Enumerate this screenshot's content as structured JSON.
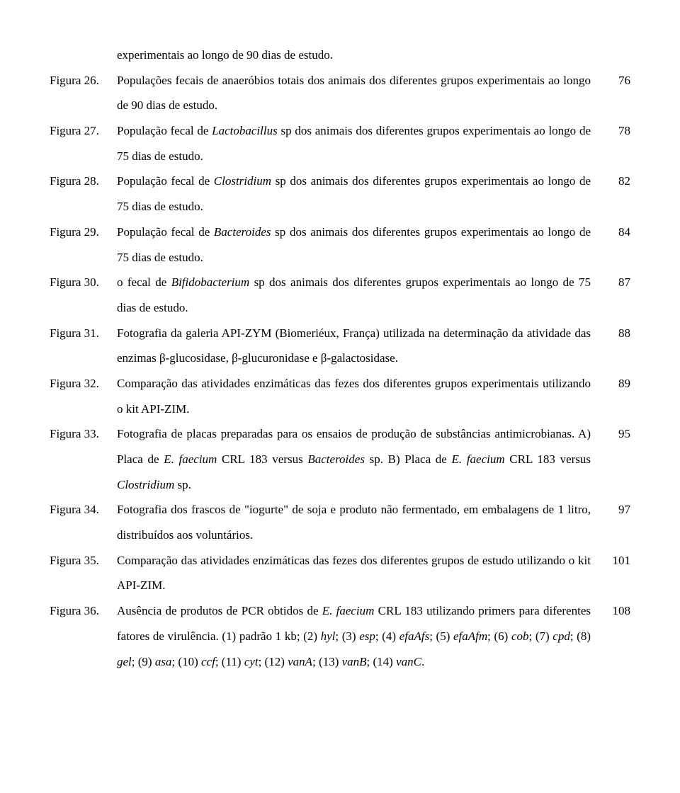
{
  "orphan_line": "experimentais ao longo de 90 dias de estudo.",
  "entries": [
    {
      "label": "Figura 26.",
      "page": "76",
      "desc": "Populações fecais de anaeróbios totais dos animais dos diferentes grupos experimentais ao longo de 90 dias de estudo."
    },
    {
      "label": "Figura 27.",
      "page": "78",
      "desc": "População fecal de <span class=\"italic\">Lactobacillus</span> sp dos animais dos diferentes grupos experimentais ao longo de 75 dias de estudo."
    },
    {
      "label": "Figura 28.",
      "page": "82",
      "desc": "População fecal de <span class=\"italic\">Clostridium</span> sp dos animais dos diferentes grupos experimentais ao longo de 75 dias de estudo."
    },
    {
      "label": "Figura 29.",
      "page": "84",
      "desc": "População fecal de <span class=\"italic\">Bacteroides</span> sp dos animais dos diferentes grupos experimentais ao longo de 75 dias de estudo."
    },
    {
      "label": "Figura 30.",
      "page": "87",
      "desc": "o fecal de <span class=\"italic\">Bifidobacterium</span> sp dos animais dos diferentes grupos experimentais ao longo de 75 dias de estudo."
    },
    {
      "label": "Figura 31.",
      "page": "88",
      "desc": "Fotografia da galeria API-ZYM (Biomeriéux, França) utilizada na determinação da atividade das enzimas β-glucosidase, β-glucuronidase e β-galactosidase."
    },
    {
      "label": "Figura 32.",
      "page": "89",
      "desc": "Comparação das atividades enzimáticas das fezes dos diferentes grupos experimentais utilizando o kit API-ZIM."
    },
    {
      "label": "Figura 33.",
      "page": "95",
      "desc": "Fotografia de placas preparadas para os ensaios de produção de substâncias antimicrobianas. A) Placa de <span class=\"italic\">E. faecium</span> CRL 183 versus <span class=\"italic\">Bacteroides</span> sp. B) Placa de <span class=\"italic\">E. faecium</span> CRL 183 versus <span class=\"italic\">Clostridium</span> sp."
    },
    {
      "label": "Figura 34.",
      "page": "97",
      "desc": "Fotografia dos frascos de \"iogurte\" de soja e produto não fermentado, em embalagens de 1 litro, distribuídos aos voluntários."
    },
    {
      "label": "Figura 35.",
      "page": "101",
      "desc": "Comparação das atividades enzimáticas das fezes dos diferentes grupos de estudo utilizando o kit API-ZIM."
    },
    {
      "label": "Figura 36.",
      "page": "108",
      "desc": "Ausência de produtos de PCR obtidos de <span class=\"italic\">E. faecium</span> CRL 183 utilizando primers para diferentes fatores de virulência. (1) padrão 1 kb; (2) <span class=\"italic\">hyl</span>; (3) <span class=\"italic\">esp</span>; (4) <span class=\"italic\">efaAfs</span>; (5) <span class=\"italic\">efaAfm</span>; (6) <span class=\"italic\">cob</span>; (7) <span class=\"italic\">cpd</span>; (8) <span class=\"italic\">gel</span>; (9) <span class=\"italic\">asa</span>; (10) <span class=\"italic\">ccf</span>; (11) <span class=\"italic\">cyt</span>; (12) <span class=\"italic\">vanA</span>;  (13) <span class=\"italic\">vanB</span>; (14) <span class=\"italic\">vanC</span>."
    }
  ]
}
